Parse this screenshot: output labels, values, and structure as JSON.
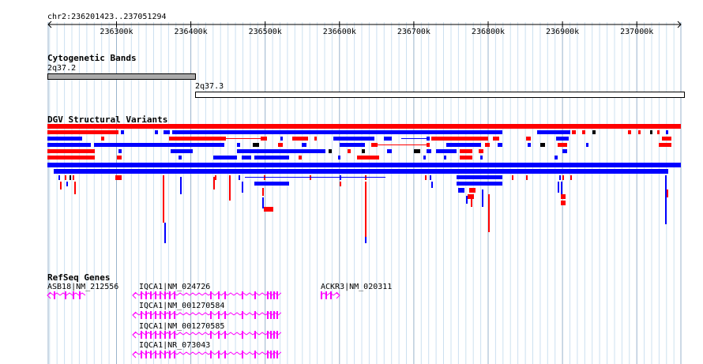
{
  "ruler": {
    "location": "chr2:236201423..237051294",
    "ticks": [
      "236300k",
      "236400k",
      "236500k",
      "236600k",
      "236700k",
      "236800k",
      "236900k",
      "237000k"
    ]
  },
  "cytoband": {
    "title": "Cytogenetic Bands",
    "bands": [
      {
        "name": "2q37.2",
        "color": "#aaaaaa"
      },
      {
        "name": "2q37.3",
        "color": "#ffffff"
      }
    ]
  },
  "dgv": {
    "title": "DGV Structural Variants",
    "colors": {
      "loss": "#ff0000",
      "gain": "#0000ff",
      "inversion": "#000000"
    }
  },
  "refseq": {
    "title": "RefSeq Genes",
    "color": "#ff00ff",
    "genes": [
      {
        "label": "ASB18|NM_212556"
      },
      {
        "label": "IQCA1|NM_024726"
      },
      {
        "label": "IQCA1|NM_001270584"
      },
      {
        "label": "IQCA1|NM_001270585"
      },
      {
        "label": "IQCA1|NR_073043"
      },
      {
        "label": "ACKR3|NM_020311"
      }
    ]
  }
}
